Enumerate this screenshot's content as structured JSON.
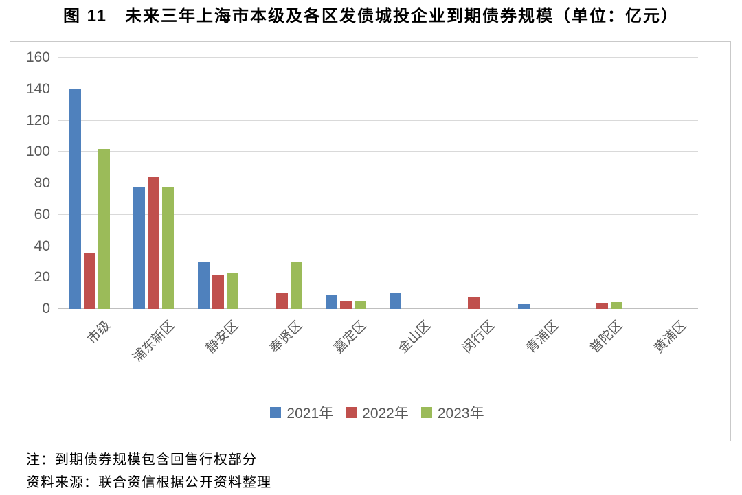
{
  "notes": [
    "注：到期债券规模包含回售行权部分",
    "资料来源：联合资信根据公开资料整理"
  ],
  "chart_data": {
    "type": "bar",
    "title": "图 11　未来三年上海市本级及各区发债城投企业到期债券规模（单位：亿元）",
    "unit": "亿元",
    "categories": [
      "市级",
      "浦东新区",
      "静安区",
      "奉贤区",
      "嘉定区",
      "金山区",
      "闵行区",
      "青浦区",
      "普陀区",
      "黄浦区"
    ],
    "series": [
      {
        "name": "2021年",
        "color": "#4F81BD",
        "values": [
          140,
          78,
          30,
          0,
          9,
          10,
          0,
          3,
          0,
          0
        ]
      },
      {
        "name": "2022年",
        "color": "#C0504D",
        "values": [
          36,
          84,
          22,
          10,
          5,
          0,
          8,
          0,
          3.5,
          0
        ]
      },
      {
        "name": "2023年",
        "color": "#9BBB59",
        "values": [
          102,
          78,
          23,
          30,
          5,
          0,
          0,
          0,
          4.5,
          0
        ]
      }
    ],
    "ylim": [
      0,
      160
    ],
    "ytick_step": 20,
    "grid": true,
    "legend_position": "bottom",
    "colors": {
      "axis_text": "#595959",
      "gridline": "#d9d9d9",
      "box_border": "#c9c9c9"
    }
  }
}
